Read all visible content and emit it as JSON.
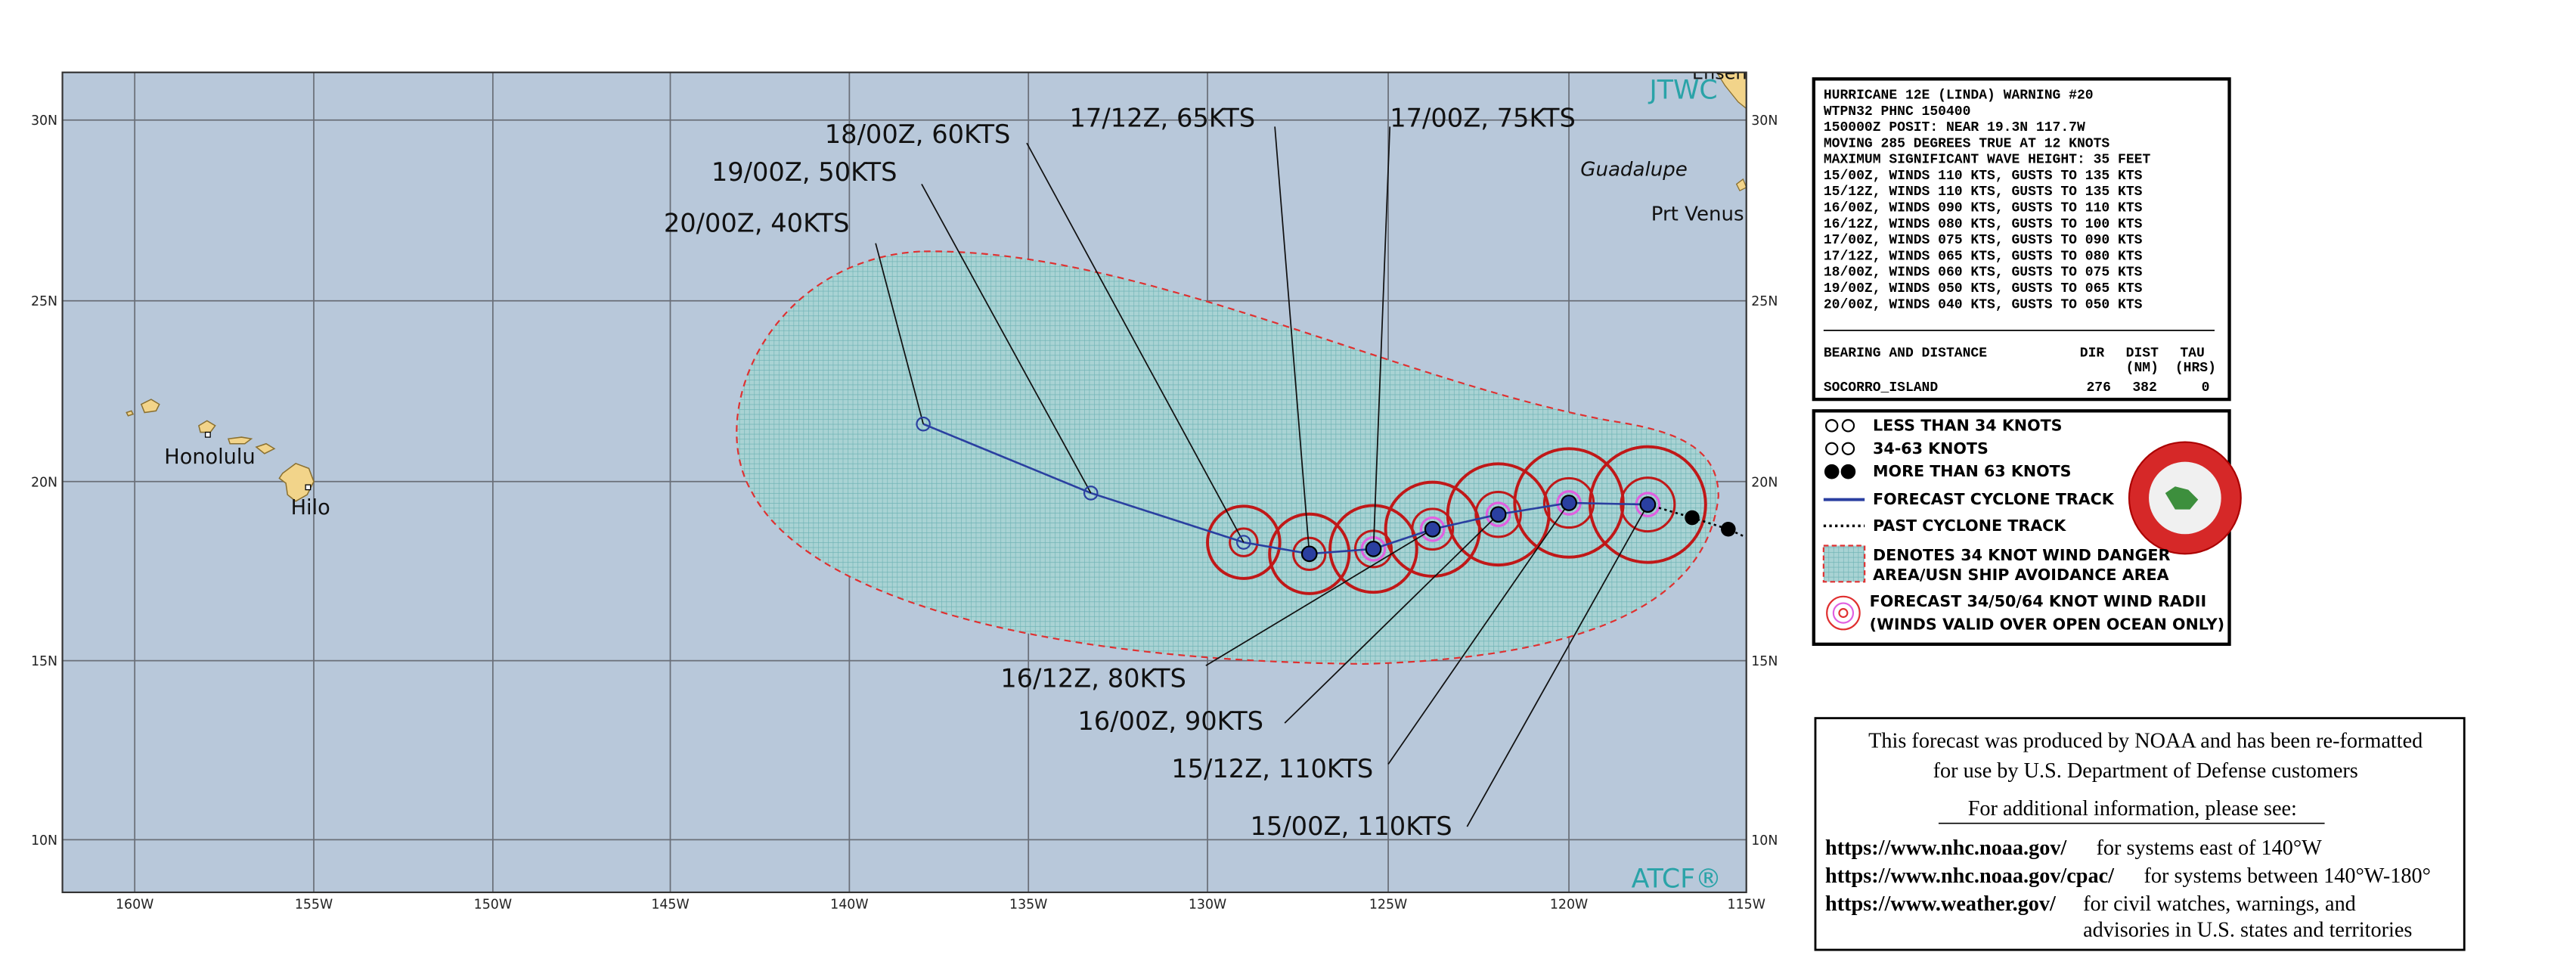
{
  "map": {
    "lat_labels": [
      "30N",
      "25N",
      "20N",
      "15N",
      "10N"
    ],
    "lon_labels": [
      "160W",
      "155W",
      "150W",
      "145W",
      "140W",
      "135W",
      "130W",
      "125W",
      "120W",
      "115W"
    ],
    "place_labels": [
      "Ensenada",
      "Guadalupe",
      "Prt Venus",
      "Honolulu",
      "Hilo"
    ],
    "agency_labels": [
      "JTWC",
      "ATCF®"
    ],
    "forecast_labels": [
      "20/00Z,  40KTS",
      "19/00Z,  50KTS",
      "18/00Z,  60KTS",
      "17/12Z,  65KTS",
      "17/00Z,  75KTS",
      "16/12Z,  80KTS",
      "16/00Z,  90KTS",
      "15/12Z, 110KTS",
      "15/00Z, 110KTS"
    ]
  },
  "warning": {
    "lines": [
      "HURRICANE 12E (LINDA) WARNING #20",
      "WTPN32 PHNC 150400",
      "150000Z POSIT: NEAR 19.3N 117.7W",
      "MOVING 285 DEGREES TRUE AT 12 KNOTS",
      "MAXIMUM SIGNIFICANT WAVE HEIGHT: 35 FEET",
      "15/00Z, WINDS 110 KTS, GUSTS TO 135 KTS",
      "15/12Z, WINDS 110 KTS, GUSTS TO 135 KTS",
      "16/00Z, WINDS 090 KTS, GUSTS TO 110 KTS",
      "16/12Z, WINDS 080 KTS, GUSTS TO 100 KTS",
      "17/00Z, WINDS 075 KTS, GUSTS TO 090 KTS",
      "17/12Z, WINDS 065 KTS, GUSTS TO 080 KTS",
      "18/00Z, WINDS 060 KTS, GUSTS TO 075 KTS",
      "19/00Z, WINDS 050 KTS, GUSTS TO 065 KTS",
      "20/00Z, WINDS 040 KTS, GUSTS TO 050 KTS"
    ],
    "table_header": [
      "BEARING AND DISTANCE",
      "DIR",
      "DIST",
      "TAU"
    ],
    "table_units": [
      "(NM)",
      "(HRS)"
    ],
    "table_row": [
      "SOCORRO_ISLAND",
      "276",
      "382",
      "0"
    ]
  },
  "legend": {
    "items": [
      "LESS THAN 34 KNOTS",
      "34-63 KNOTS",
      "MORE THAN 63 KNOTS",
      "FORECAST CYCLONE TRACK",
      "PAST CYCLONE TRACK",
      "DENOTES 34 KNOT WIND DANGER",
      "AREA/USN SHIP AVOIDANCE AREA",
      "FORECAST 34/50/64 KNOT WIND RADII",
      "(WINDS VALID OVER OPEN OCEAN ONLY)"
    ]
  },
  "footer": {
    "intro": [
      "This forecast was produced by NOAA and has been re-formatted",
      "for use by U.S. Department of Defense customers"
    ],
    "more": "For additional information, please see:",
    "links": [
      [
        "https://www.nhc.noaa.gov/",
        "for systems east of 140°W"
      ],
      [
        "https://www.nhc.noaa.gov/cpac/",
        "for systems between 140°W-180°"
      ],
      [
        "https://www.weather.gov/",
        "for civil watches, warnings, and"
      ]
    ],
    "continuation": "advisories in U.S. states and territories"
  }
}
